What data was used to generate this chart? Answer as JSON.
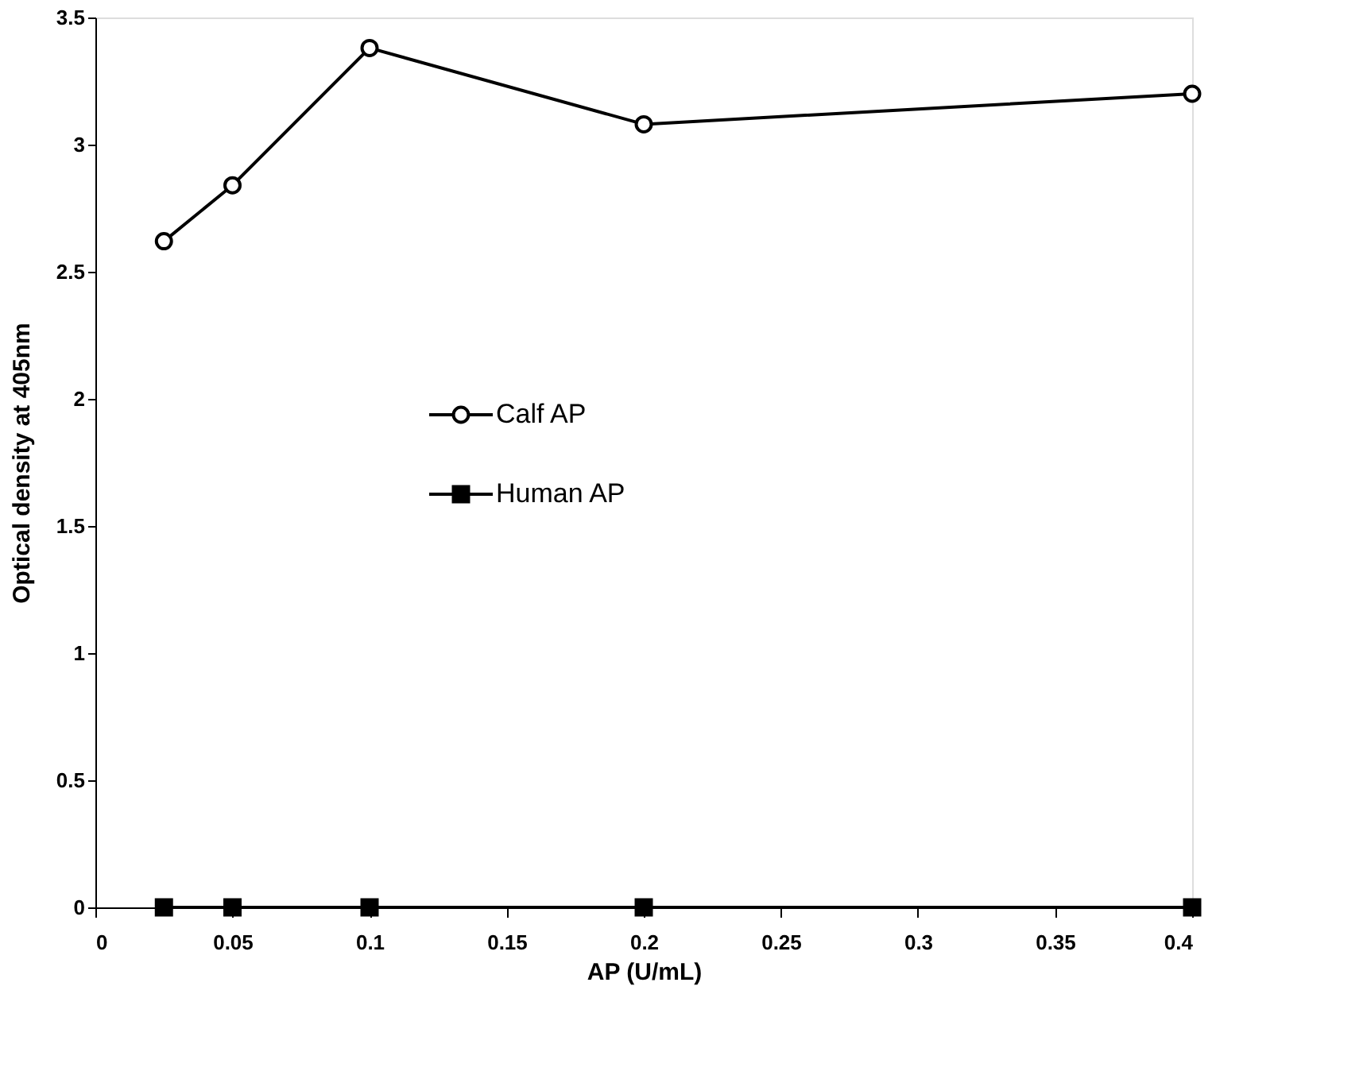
{
  "chart_data": {
    "type": "line",
    "xlabel": "AP (U/mL)",
    "ylabel": "Optical density at 405nm",
    "x": [
      0.025,
      0.05,
      0.1,
      0.2,
      0.4
    ],
    "series": [
      {
        "name": "Calf AP",
        "color": "#000000",
        "marker": "circle",
        "values": [
          2.62,
          2.84,
          3.38,
          3.08,
          3.2
        ]
      },
      {
        "name": "Human AP",
        "color": "#000000",
        "marker": "square",
        "values": [
          0,
          0,
          0,
          0,
          0
        ]
      }
    ],
    "xlim": [
      0,
      0.4
    ],
    "xticks": [
      0,
      0.05,
      0.1,
      0.15,
      0.2,
      0.25,
      0.3,
      0.35,
      0.4
    ],
    "ylim": [
      0,
      3.5
    ],
    "yticks": [
      0,
      0.5,
      1,
      1.5,
      2,
      2.5,
      3,
      3.5
    ],
    "grid": false,
    "legend": "left",
    "line_style": "solid"
  }
}
